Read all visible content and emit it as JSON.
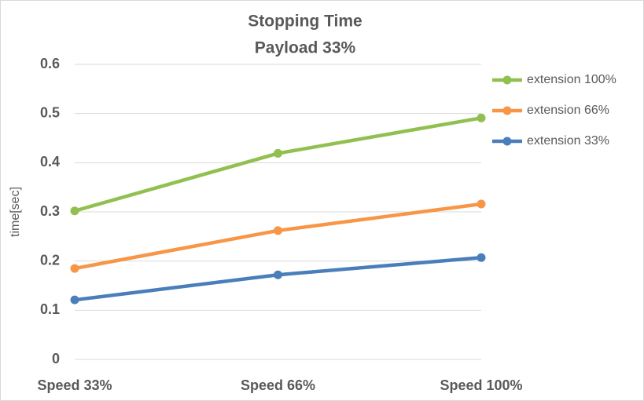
{
  "chart_data": {
    "type": "line",
    "title": "Stopping Time",
    "subtitle": "Payload 33%",
    "y_label": "time[sec]",
    "categories": [
      "Speed 33%",
      "Speed 66%",
      "Speed 100%"
    ],
    "series": [
      {
        "name": "extension 100%",
        "color": "#92c050",
        "values": [
          0.302,
          0.419,
          0.491
        ]
      },
      {
        "name": "extension 66%",
        "color": "#f79646",
        "values": [
          0.185,
          0.262,
          0.316
        ]
      },
      {
        "name": "extension 33%",
        "color": "#4a7ebb",
        "values": [
          0.121,
          0.172,
          0.207
        ]
      }
    ],
    "ylim": [
      0,
      0.6
    ],
    "yticks": [
      0,
      0.1,
      0.2,
      0.3,
      0.4,
      0.5,
      0.6
    ],
    "grid": true,
    "legend": "right"
  }
}
